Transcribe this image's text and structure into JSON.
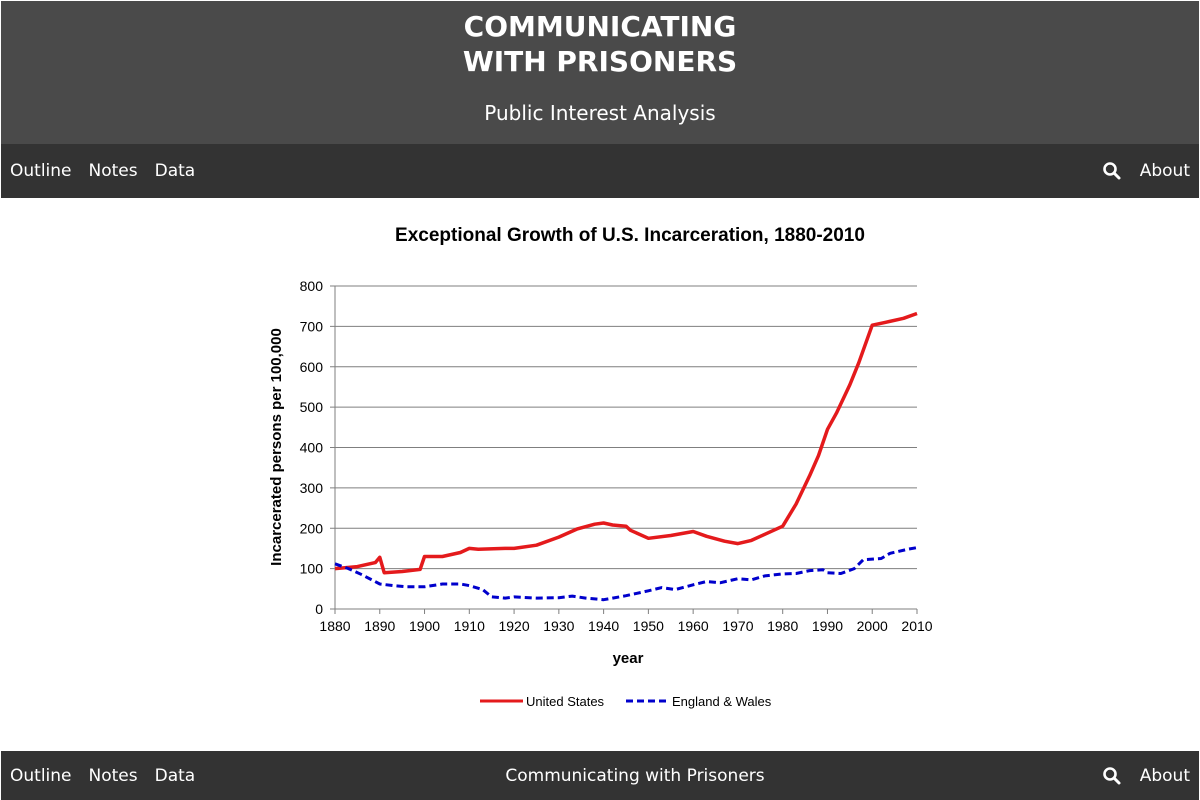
{
  "header": {
    "title_line1": "COMMUNICATING",
    "title_line2": "WITH PRISONERS",
    "subtitle": "Public Interest Analysis"
  },
  "top_nav": {
    "links": [
      "Outline",
      "Notes",
      "Data"
    ],
    "about": "About",
    "search_icon": "search-icon"
  },
  "bottom_nav": {
    "links": [
      "Outline",
      "Notes",
      "Data"
    ],
    "center_text": "Communicating with Prisoners",
    "about": "About",
    "search_icon": "search-icon"
  },
  "colors": {
    "header_bg": "#4a4a4a",
    "nav_bg": "#333333",
    "us_series": "#e41a1c",
    "ew_series": "#0000cc"
  },
  "chart_data": {
    "type": "line",
    "title": "Exceptional Growth of U.S. Incarceration, 1880-2010",
    "xlabel": "year",
    "ylabel": "Incarcerated persons per 100,000",
    "xlim": [
      1880,
      2010
    ],
    "ylim": [
      0,
      800
    ],
    "x_ticks": [
      1880,
      1890,
      1900,
      1910,
      1920,
      1930,
      1940,
      1950,
      1960,
      1970,
      1980,
      1990,
      2000,
      2010
    ],
    "y_ticks": [
      0,
      100,
      200,
      300,
      400,
      500,
      600,
      700,
      800
    ],
    "grid": "horizontal",
    "legend_position": "bottom",
    "series": [
      {
        "name": "United States",
        "style": "solid",
        "color": "#e41a1c",
        "points": [
          [
            1880,
            100
          ],
          [
            1885,
            105
          ],
          [
            1889,
            115
          ],
          [
            1890,
            128
          ],
          [
            1891,
            90
          ],
          [
            1895,
            93
          ],
          [
            1899,
            98
          ],
          [
            1900,
            130
          ],
          [
            1904,
            130
          ],
          [
            1908,
            140
          ],
          [
            1910,
            150
          ],
          [
            1912,
            148
          ],
          [
            1918,
            150
          ],
          [
            1920,
            150
          ],
          [
            1925,
            158
          ],
          [
            1930,
            178
          ],
          [
            1934,
            198
          ],
          [
            1938,
            210
          ],
          [
            1940,
            213
          ],
          [
            1942,
            208
          ],
          [
            1945,
            205
          ],
          [
            1946,
            195
          ],
          [
            1950,
            175
          ],
          [
            1955,
            182
          ],
          [
            1960,
            192
          ],
          [
            1963,
            180
          ],
          [
            1967,
            168
          ],
          [
            1970,
            162
          ],
          [
            1973,
            170
          ],
          [
            1976,
            185
          ],
          [
            1980,
            205
          ],
          [
            1983,
            260
          ],
          [
            1986,
            330
          ],
          [
            1988,
            380
          ],
          [
            1990,
            445
          ],
          [
            1992,
            485
          ],
          [
            1995,
            555
          ],
          [
            1997,
            610
          ],
          [
            2000,
            703
          ],
          [
            2003,
            710
          ],
          [
            2007,
            720
          ],
          [
            2010,
            732
          ]
        ]
      },
      {
        "name": "England & Wales",
        "style": "dashed",
        "color": "#0000cc",
        "points": [
          [
            1880,
            112
          ],
          [
            1883,
            100
          ],
          [
            1886,
            85
          ],
          [
            1890,
            62
          ],
          [
            1893,
            58
          ],
          [
            1896,
            55
          ],
          [
            1900,
            55
          ],
          [
            1904,
            62
          ],
          [
            1908,
            62
          ],
          [
            1910,
            58
          ],
          [
            1913,
            48
          ],
          [
            1915,
            30
          ],
          [
            1918,
            27
          ],
          [
            1920,
            30
          ],
          [
            1925,
            27
          ],
          [
            1930,
            28
          ],
          [
            1933,
            32
          ],
          [
            1936,
            27
          ],
          [
            1940,
            23
          ],
          [
            1942,
            27
          ],
          [
            1945,
            33
          ],
          [
            1950,
            45
          ],
          [
            1953,
            53
          ],
          [
            1956,
            48
          ],
          [
            1960,
            60
          ],
          [
            1963,
            68
          ],
          [
            1966,
            65
          ],
          [
            1970,
            75
          ],
          [
            1973,
            72
          ],
          [
            1976,
            82
          ],
          [
            1980,
            87
          ],
          [
            1983,
            88
          ],
          [
            1986,
            95
          ],
          [
            1989,
            97
          ],
          [
            1990,
            90
          ],
          [
            1993,
            88
          ],
          [
            1996,
            100
          ],
          [
            1998,
            122
          ],
          [
            2002,
            125
          ],
          [
            2004,
            138
          ],
          [
            2008,
            148
          ],
          [
            2010,
            152
          ]
        ]
      }
    ]
  }
}
